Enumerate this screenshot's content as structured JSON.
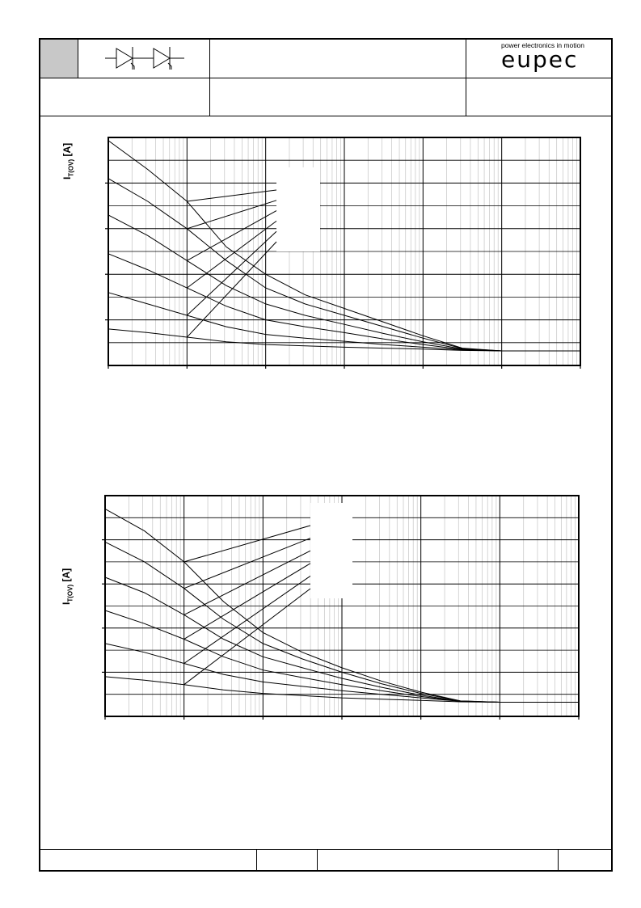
{
  "header": {
    "brand_tagline": "power electronics in motion",
    "brand_name": "eupec",
    "symbol_icon": "two-thyristor-symbol-icon"
  },
  "chart_data": [
    {
      "type": "line",
      "title": "",
      "ylabel_main": "I",
      "ylabel_sub": "T(OV)",
      "ylabel_unit": " [A]",
      "xscale": "log",
      "x_decades": 6,
      "ylim": [
        0,
        5
      ],
      "grid": true,
      "series": [
        {
          "values": [
            [
              0,
              4.93
            ],
            [
              0.5,
              4.3
            ],
            [
              1,
              3.6
            ],
            [
              1.5,
              2.6
            ],
            [
              2,
              2.0
            ],
            [
              2.5,
              1.55
            ],
            [
              3,
              1.25
            ],
            [
              3.5,
              0.95
            ],
            [
              4,
              0.65
            ],
            [
              4.5,
              0.38
            ],
            [
              5,
              0.32
            ],
            [
              6,
              0.32
            ]
          ]
        },
        {
          "values": [
            [
              0,
              4.1
            ],
            [
              0.5,
              3.6
            ],
            [
              1,
              3.0
            ],
            [
              1.5,
              2.3
            ],
            [
              2,
              1.7
            ],
            [
              2.5,
              1.35
            ],
            [
              3,
              1.1
            ],
            [
              3.5,
              0.85
            ],
            [
              4,
              0.6
            ],
            [
              4.5,
              0.37
            ],
            [
              5,
              0.32
            ],
            [
              6,
              0.32
            ]
          ]
        },
        {
          "values": [
            [
              0,
              3.3
            ],
            [
              0.5,
              2.85
            ],
            [
              1,
              2.3
            ],
            [
              1.5,
              1.75
            ],
            [
              2,
              1.35
            ],
            [
              2.5,
              1.1
            ],
            [
              3,
              0.9
            ],
            [
              3.5,
              0.7
            ],
            [
              4,
              0.52
            ],
            [
              4.5,
              0.36
            ],
            [
              5,
              0.32
            ],
            [
              6,
              0.32
            ]
          ]
        },
        {
          "values": [
            [
              0,
              2.45
            ],
            [
              0.5,
              2.1
            ],
            [
              1,
              1.7
            ],
            [
              1.5,
              1.3
            ],
            [
              2,
              1.0
            ],
            [
              2.5,
              0.85
            ],
            [
              3,
              0.72
            ],
            [
              3.5,
              0.58
            ],
            [
              4,
              0.46
            ],
            [
              4.5,
              0.35
            ],
            [
              5,
              0.32
            ],
            [
              6,
              0.32
            ]
          ]
        },
        {
          "values": [
            [
              0,
              1.6
            ],
            [
              0.5,
              1.35
            ],
            [
              1,
              1.1
            ],
            [
              1.5,
              0.85
            ],
            [
              2,
              0.68
            ],
            [
              2.5,
              0.6
            ],
            [
              3,
              0.53
            ],
            [
              3.5,
              0.46
            ],
            [
              4,
              0.4
            ],
            [
              4.5,
              0.34
            ],
            [
              5,
              0.32
            ],
            [
              6,
              0.32
            ]
          ]
        },
        {
          "values": [
            [
              0,
              0.8
            ],
            [
              0.5,
              0.72
            ],
            [
              1,
              0.62
            ],
            [
              1.5,
              0.52
            ],
            [
              2,
              0.46
            ],
            [
              2.5,
              0.43
            ],
            [
              3,
              0.4
            ],
            [
              3.5,
              0.38
            ],
            [
              4,
              0.36
            ],
            [
              4.5,
              0.33
            ],
            [
              5,
              0.32
            ],
            [
              6,
              0.32
            ]
          ]
        }
      ]
    },
    {
      "type": "line",
      "title": "",
      "ylabel_main": "I",
      "ylabel_sub": "T(OV)",
      "ylabel_unit": " [A]",
      "xscale": "log",
      "x_decades": 6,
      "ylim": [
        0,
        5
      ],
      "grid": true,
      "series": [
        {
          "values": [
            [
              0,
              4.7
            ],
            [
              0.5,
              4.2
            ],
            [
              1,
              3.5
            ],
            [
              1.5,
              2.6
            ],
            [
              2,
              1.9
            ],
            [
              2.5,
              1.45
            ],
            [
              3,
              1.1
            ],
            [
              3.5,
              0.8
            ],
            [
              4,
              0.55
            ],
            [
              4.5,
              0.35
            ],
            [
              5,
              0.32
            ],
            [
              5.6,
              0.32
            ]
          ]
        },
        {
          "values": [
            [
              0,
              3.95
            ],
            [
              0.5,
              3.5
            ],
            [
              1,
              2.9
            ],
            [
              1.5,
              2.2
            ],
            [
              2,
              1.65
            ],
            [
              2.5,
              1.3
            ],
            [
              3,
              1.0
            ],
            [
              3.5,
              0.74
            ],
            [
              4,
              0.52
            ],
            [
              4.5,
              0.35
            ],
            [
              5,
              0.32
            ],
            [
              6,
              0.32
            ]
          ]
        },
        {
          "values": [
            [
              0,
              3.15
            ],
            [
              0.5,
              2.8
            ],
            [
              1,
              2.3
            ],
            [
              1.5,
              1.75
            ],
            [
              2,
              1.35
            ],
            [
              2.5,
              1.1
            ],
            [
              3,
              0.86
            ],
            [
              3.5,
              0.66
            ],
            [
              4,
              0.48
            ],
            [
              4.5,
              0.34
            ],
            [
              5,
              0.32
            ],
            [
              6,
              0.32
            ]
          ]
        },
        {
          "values": [
            [
              0,
              2.4
            ],
            [
              0.5,
              2.1
            ],
            [
              1,
              1.75
            ],
            [
              1.5,
              1.35
            ],
            [
              2,
              1.05
            ],
            [
              2.5,
              0.88
            ],
            [
              3,
              0.72
            ],
            [
              3.5,
              0.58
            ],
            [
              4,
              0.45
            ],
            [
              4.5,
              0.34
            ],
            [
              5,
              0.32
            ],
            [
              6,
              0.32
            ]
          ]
        },
        {
          "values": [
            [
              0,
              1.65
            ],
            [
              0.5,
              1.45
            ],
            [
              1,
              1.2
            ],
            [
              1.5,
              0.95
            ],
            [
              2,
              0.78
            ],
            [
              2.5,
              0.68
            ],
            [
              3,
              0.58
            ],
            [
              3.5,
              0.5
            ],
            [
              4,
              0.42
            ],
            [
              4.5,
              0.34
            ],
            [
              5,
              0.32
            ],
            [
              6,
              0.32
            ]
          ]
        },
        {
          "values": [
            [
              0,
              0.9
            ],
            [
              0.5,
              0.82
            ],
            [
              1,
              0.72
            ],
            [
              1.5,
              0.6
            ],
            [
              2,
              0.52
            ],
            [
              2.5,
              0.47
            ],
            [
              3,
              0.42
            ],
            [
              3.5,
              0.39
            ],
            [
              4,
              0.36
            ],
            [
              4.5,
              0.33
            ],
            [
              5,
              0.32
            ],
            [
              6,
              0.32
            ]
          ]
        }
      ]
    }
  ]
}
